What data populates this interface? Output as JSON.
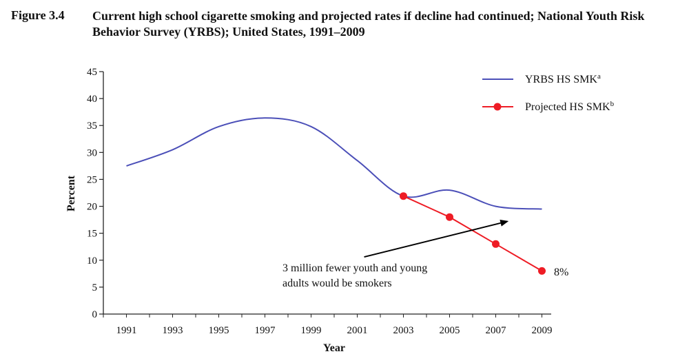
{
  "figure": {
    "label": "Figure 3.4",
    "title": "Current high school cigarette smoking and projected rates if decline had continued; National Youth Risk Behavior Survey (YRBS); United States, 1991–2009"
  },
  "colors": {
    "yrbs": "#4b4fb8",
    "projected": "#ee1c25",
    "axis": "#222222"
  },
  "chart_data": {
    "type": "line",
    "xlabel": "Year",
    "ylabel": "Percent",
    "xlim": [
      1990,
      2010
    ],
    "ylim": [
      0,
      45
    ],
    "x_ticks": [
      "1991",
      "1993",
      "1995",
      "1997",
      "1999",
      "2001",
      "2003",
      "2005",
      "2007",
      "2009"
    ],
    "y_ticks": [
      "0",
      "5",
      "10",
      "15",
      "20",
      "25",
      "30",
      "35",
      "40",
      "45"
    ],
    "grid": false,
    "legend_position": "top-right",
    "series": [
      {
        "name": "YRBS HS SMKª",
        "name_base": "YRBS HS SMK",
        "name_sup": "a",
        "style": "line",
        "x": [
          1991,
          1993,
          1995,
          1997,
          1999,
          2001,
          2003,
          2005,
          2007,
          2009
        ],
        "y": [
          27.5,
          30.5,
          34.8,
          36.4,
          34.8,
          28.5,
          21.9,
          23.0,
          20.0,
          19.5
        ]
      },
      {
        "name": "Projected HS SMKᵇ",
        "name_base": "Projected HS SMK",
        "name_sup": "b",
        "style": "line-markers",
        "x": [
          2003,
          2005,
          2007,
          2009
        ],
        "y": [
          21.9,
          18.0,
          13.0,
          8.0
        ]
      }
    ],
    "annotations": {
      "arrow_text_line1": "3 million fewer youth and young",
      "arrow_text_line2": "adults would be smokers",
      "end_label": "8%",
      "arrow_from": [
        2001.3,
        10.6
      ],
      "arrow_to": [
        2007.5,
        17.2
      ]
    }
  }
}
